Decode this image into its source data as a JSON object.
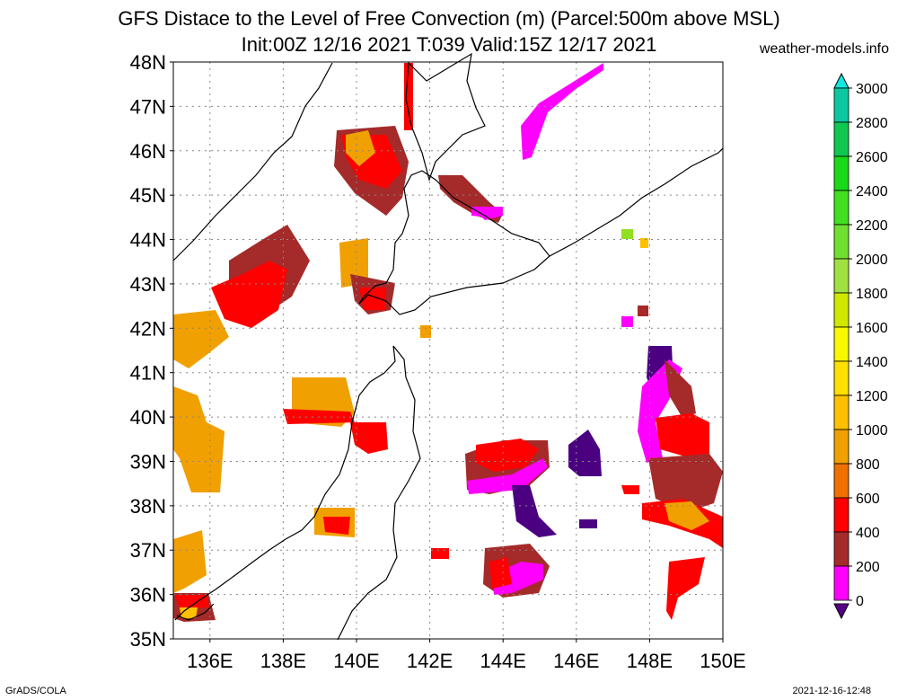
{
  "header": {
    "title_line1": "GFS Distace to the Level of Free Convection (m) (Parcel:500m above MSL)",
    "title_line2": "Init:00Z 12/16 2021 T:039 Valid:15Z 12/17 2021",
    "credit": "weather-models.info"
  },
  "footer": {
    "software": "GrADS/COLA",
    "timestamp": "2021-12-16-12:48"
  },
  "map": {
    "lat_labels": [
      "48N",
      "47N",
      "46N",
      "45N",
      "44N",
      "43N",
      "42N",
      "41N",
      "40N",
      "39N",
      "38N",
      "37N",
      "36N",
      "35N"
    ],
    "lon_labels": [
      "136E",
      "138E",
      "140E",
      "142E",
      "144E",
      "146E",
      "148E",
      "150E"
    ],
    "lat_range": [
      35,
      48
    ],
    "lon_range": [
      135,
      150
    ],
    "grid": true
  },
  "colorbar": {
    "labels": [
      "3000",
      "2800",
      "2600",
      "2400",
      "2200",
      "2000",
      "1800",
      "1600",
      "1400",
      "1200",
      "1000",
      "800",
      "600",
      "400",
      "200",
      "0"
    ],
    "colors": [
      "#0fe8e0",
      "#0cc8a0",
      "#10c850",
      "#19d919",
      "#40e020",
      "#70e030",
      "#a0e040",
      "#d0e800",
      "#f8f800",
      "#ffe000",
      "#ffc000",
      "#f0a000",
      "#f07000",
      "#ff0000",
      "#a52a2a",
      "#ff00ff",
      "#550088"
    ]
  },
  "legend_colors": {
    "c0": "#4b0082",
    "c200": "#ff00ff",
    "c400": "#a52a2a",
    "c600": "#ff0000",
    "c800": "#f07000",
    "c1000": "#f0a000",
    "c1200": "#ffc000",
    "c1400": "#ffe000",
    "c2000": "#90e020"
  }
}
